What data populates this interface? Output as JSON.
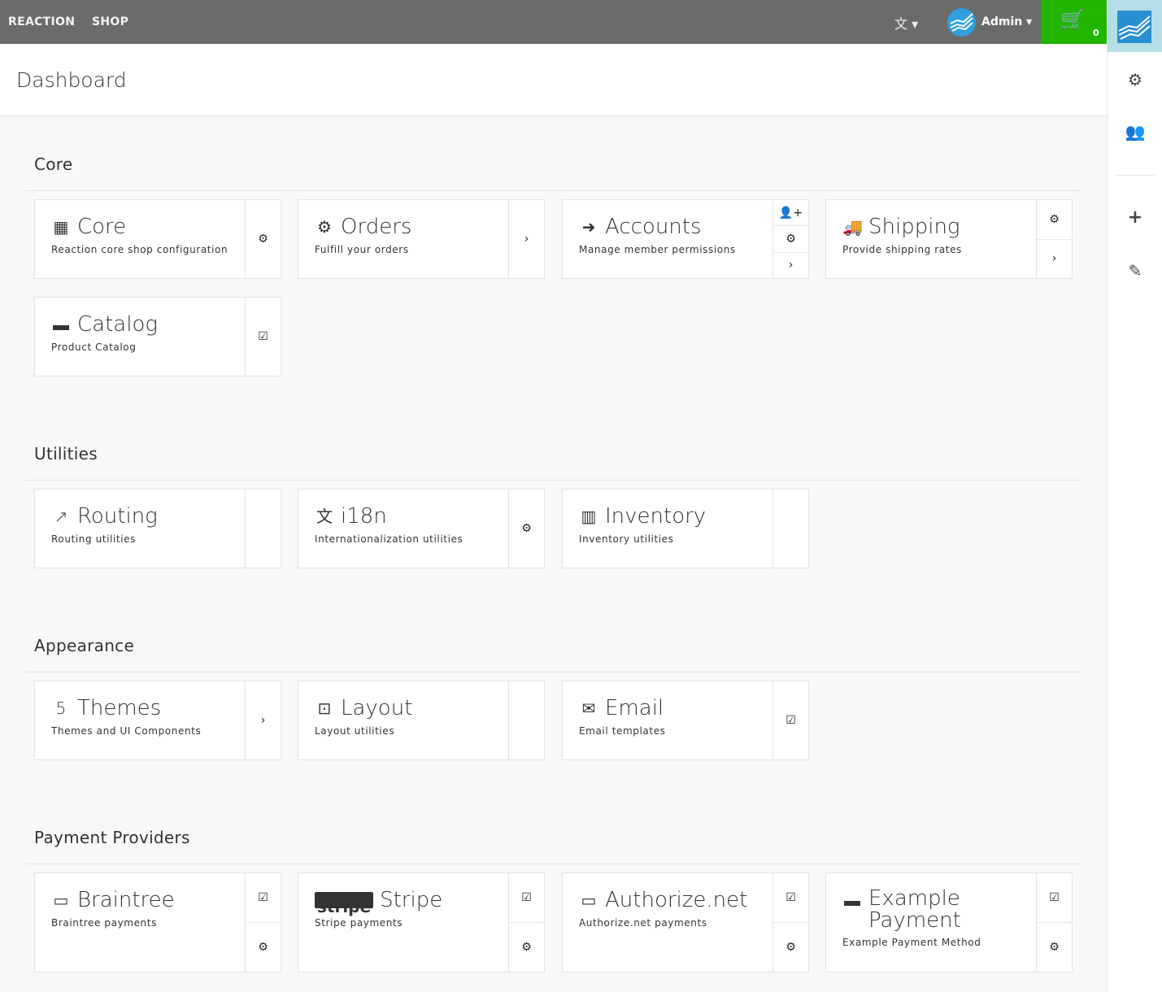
{
  "topbar": {
    "brand": "REACTION",
    "shop": "SHOP",
    "language_icon": "translate-icon",
    "user": "Admin",
    "cart_count": "0"
  },
  "header": {
    "title": "Dashboard"
  },
  "sidebar": {
    "items": [
      "settings-icon",
      "users-icon",
      "plus-icon",
      "edit-icon"
    ]
  },
  "colors": {
    "topbar": "#6b6b6b",
    "cart": "#22b500",
    "logo_tile": "#b5dfe7",
    "logo": "#2a8fd0"
  },
  "sections": [
    {
      "title": "Core",
      "cards": [
        {
          "title": "Core",
          "desc": "Reaction core shop configuration",
          "icon": "▦",
          "icon_name": "grid-icon",
          "actions": [
            "gear"
          ]
        },
        {
          "title": "Orders",
          "desc": "Fulfill your orders",
          "icon": "⚙",
          "icon_name": "sun-icon",
          "actions": [
            "chevron"
          ]
        },
        {
          "title": "Accounts",
          "desc": "Manage member permissions",
          "icon": "➜",
          "icon_name": "sign-in-icon",
          "actions": [
            "user-plus",
            "gear",
            "chevron"
          ]
        },
        {
          "title": "Shipping",
          "desc": "Provide shipping rates",
          "icon": "🚚",
          "icon_name": "truck-icon",
          "actions": [
            "gear",
            "chevron"
          ]
        },
        {
          "title": "Catalog",
          "desc": "Product Catalog",
          "icon": "▬",
          "icon_name": "archive-icon",
          "actions": [
            "check"
          ]
        }
      ]
    },
    {
      "title": "Utilities",
      "cards": [
        {
          "title": "Routing",
          "desc": "Routing utilities",
          "icon": "↗",
          "icon_name": "share-icon",
          "actions": []
        },
        {
          "title": "i18n",
          "desc": "Internationalization utilities",
          "icon": "文",
          "icon_name": "language-icon",
          "actions": [
            "gear"
          ]
        },
        {
          "title": "Inventory",
          "desc": "Inventory utilities",
          "icon": "▥",
          "icon_name": "building-icon",
          "actions": []
        }
      ]
    },
    {
      "title": "Appearance",
      "cards": [
        {
          "title": "Themes",
          "desc": "Themes and UI Components",
          "icon": "5",
          "icon_name": "html5-icon",
          "actions": [
            "chevron"
          ]
        },
        {
          "title": "Layout",
          "desc": "Layout utilities",
          "icon": "⊡",
          "icon_name": "object-group-icon",
          "actions": []
        },
        {
          "title": "Email",
          "desc": "Email templates",
          "icon": "✉",
          "icon_name": "envelope-icon",
          "actions": [
            "check"
          ]
        }
      ]
    },
    {
      "title": "Payment Providers",
      "cards": [
        {
          "title": "Braintree",
          "desc": "Braintree payments",
          "icon": "▭",
          "icon_name": "credit-card-icon",
          "actions": [
            "check",
            "gear"
          ]
        },
        {
          "title": "Stripe",
          "desc": "Stripe payments",
          "icon": "stripe",
          "icon_name": "stripe-icon",
          "actions": [
            "check",
            "gear"
          ]
        },
        {
          "title": "Authorize.net",
          "desc": "Authorize.net payments",
          "icon": "▭",
          "icon_name": "credit-card-icon",
          "actions": [
            "check",
            "gear"
          ]
        },
        {
          "title": "Example Payment",
          "desc": "Example Payment Method",
          "icon": "▬",
          "icon_name": "credit-card-icon",
          "actions": [
            "check",
            "gear"
          ]
        }
      ]
    }
  ]
}
